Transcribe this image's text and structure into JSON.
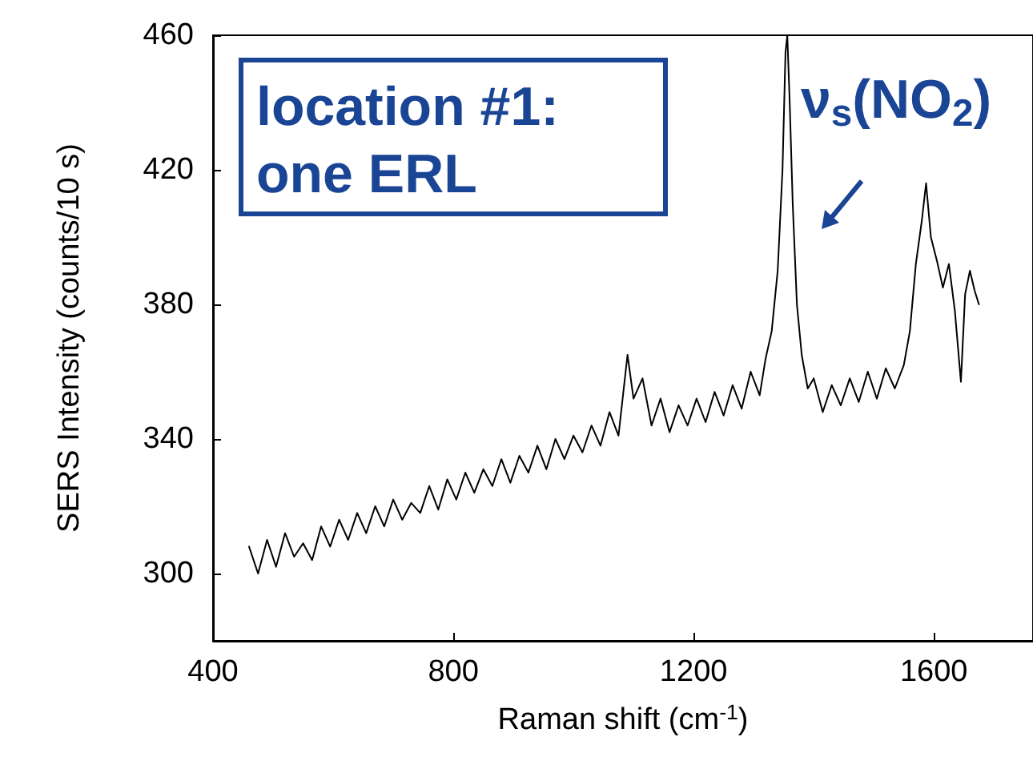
{
  "chart_data": {
    "type": "line",
    "xlabel": "Raman shift (cm$^{-1}$)",
    "ylabel": "SERS Intensity (counts/10 s)",
    "annotations": [
      "location #1:\none ERL",
      "ν$_{s}$(NO$_{2}$)"
    ],
    "x": [
      460,
      475,
      490,
      505,
      520,
      535,
      550,
      565,
      580,
      595,
      610,
      625,
      640,
      655,
      670,
      685,
      700,
      715,
      730,
      745,
      760,
      775,
      790,
      805,
      820,
      835,
      850,
      865,
      880,
      895,
      910,
      925,
      940,
      955,
      970,
      985,
      1000,
      1015,
      1030,
      1045,
      1060,
      1075,
      1090,
      1100,
      1115,
      1130,
      1145,
      1160,
      1175,
      1190,
      1205,
      1220,
      1235,
      1250,
      1265,
      1280,
      1295,
      1310,
      1320,
      1330,
      1340,
      1348,
      1353,
      1356,
      1360,
      1365,
      1372,
      1380,
      1390,
      1400,
      1415,
      1430,
      1445,
      1460,
      1475,
      1490,
      1505,
      1520,
      1535,
      1550,
      1560,
      1570,
      1580,
      1587,
      1595,
      1605,
      1615,
      1625,
      1635,
      1645,
      1652,
      1660,
      1668,
      1675
    ],
    "series": [
      {
        "color": "#000000",
        "values": [
          308,
          300,
          310,
          302,
          312,
          305,
          309,
          304,
          314,
          308,
          316,
          310,
          318,
          312,
          320,
          314,
          322,
          316,
          321,
          318,
          326,
          319,
          328,
          322,
          330,
          324,
          331,
          326,
          334,
          327,
          335,
          330,
          338,
          331,
          340,
          334,
          341,
          336,
          344,
          338,
          348,
          341,
          365,
          352,
          358,
          344,
          352,
          342,
          350,
          344,
          352,
          345,
          354,
          347,
          356,
          349,
          360,
          353,
          364,
          372,
          390,
          420,
          455,
          460,
          440,
          410,
          380,
          365,
          355,
          358,
          348,
          356,
          350,
          358,
          351,
          360,
          352,
          361,
          355,
          362,
          372,
          392,
          405,
          416,
          400,
          393,
          385,
          392,
          378,
          357,
          383,
          390,
          384,
          380
        ]
      }
    ],
    "xlim": [
      400,
      1765
    ],
    "xticks": [
      400,
      800,
      1200,
      1600
    ],
    "ylim": [
      280,
      460
    ],
    "yticks": [
      300,
      340,
      380,
      420,
      460
    ],
    "grid": false,
    "marker": "none",
    "line_style": "solid"
  }
}
